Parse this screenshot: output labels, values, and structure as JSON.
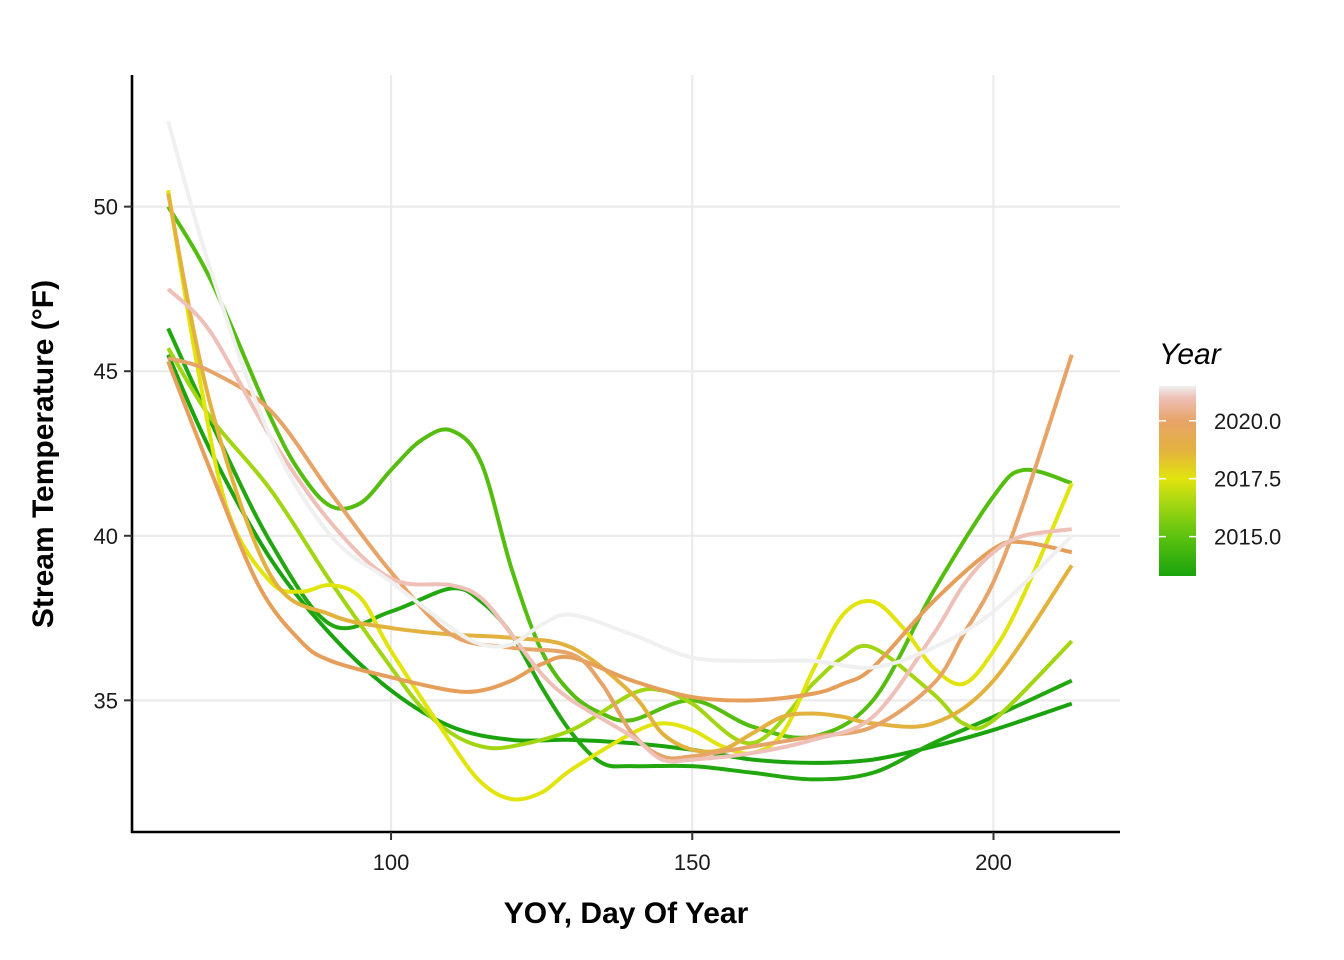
{
  "chart_data": {
    "type": "line",
    "title": "",
    "xlabel": "YOY, Day Of Year",
    "ylabel": "Stream Temperature (°F)",
    "xlim": [
      57,
      221
    ],
    "ylim": [
      31,
      54
    ],
    "x_ticks": [
      100,
      150,
      200
    ],
    "y_ticks": [
      35,
      40,
      45,
      50
    ],
    "x_tick_labels": [
      "100",
      "150",
      "200"
    ],
    "y_tick_labels": [
      "35",
      "40",
      "45",
      "50"
    ],
    "grid": true,
    "legend": {
      "title": "Year",
      "position": "right",
      "type": "colorbar",
      "range": [
        2013.3,
        2021.5
      ],
      "tick_values": [
        2015.0,
        2017.5,
        2020.0
      ],
      "tick_labels": [
        "2015.0",
        "2017.5",
        "2020.0"
      ],
      "gradient": [
        {
          "value": 2013.3,
          "color": "#1aa30d"
        },
        {
          "value": 2015.0,
          "color": "#5cc20f"
        },
        {
          "value": 2016.5,
          "color": "#a8d812"
        },
        {
          "value": 2017.5,
          "color": "#e2e40e"
        },
        {
          "value": 2018.7,
          "color": "#e3b23e"
        },
        {
          "value": 2020.0,
          "color": "#e7a468"
        },
        {
          "value": 2021.0,
          "color": "#eec0b8"
        },
        {
          "value": 2021.5,
          "color": "#f0f0f0"
        }
      ]
    },
    "series": [
      {
        "color": "#1aa30d",
        "points": [
          [
            63,
            45.5
          ],
          [
            70,
            42.6
          ],
          [
            80,
            39.3
          ],
          [
            90,
            37.0
          ],
          [
            100,
            35.3
          ],
          [
            110,
            34.2
          ],
          [
            120,
            33.8
          ],
          [
            130,
            33.8
          ],
          [
            140,
            33.7
          ],
          [
            150,
            33.5
          ],
          [
            160,
            33.2
          ],
          [
            170,
            33.1
          ],
          [
            180,
            33.2
          ],
          [
            190,
            33.6
          ],
          [
            200,
            34.1
          ],
          [
            213,
            34.9
          ]
        ]
      },
      {
        "color": "#22a80e",
        "points": [
          [
            63,
            46.3
          ],
          [
            70,
            43.5
          ],
          [
            80,
            39.8
          ],
          [
            90,
            37.3
          ],
          [
            100,
            37.7
          ],
          [
            110,
            38.4
          ],
          [
            115,
            38.0
          ],
          [
            120,
            37.0
          ],
          [
            125,
            35.4
          ],
          [
            130,
            34.0
          ],
          [
            135,
            33.1
          ],
          [
            140,
            33.0
          ],
          [
            150,
            33.0
          ],
          [
            160,
            32.8
          ],
          [
            170,
            32.6
          ],
          [
            180,
            32.8
          ],
          [
            190,
            33.7
          ],
          [
            200,
            34.5
          ],
          [
            213,
            35.6
          ]
        ]
      },
      {
        "color": "#55bd10",
        "points": [
          [
            63,
            50.0
          ],
          [
            70,
            47.8
          ],
          [
            80,
            43.6
          ],
          [
            85,
            41.9
          ],
          [
            90,
            40.9
          ],
          [
            95,
            41.0
          ],
          [
            100,
            42.0
          ],
          [
            105,
            42.9
          ],
          [
            110,
            43.2
          ],
          [
            115,
            42.2
          ],
          [
            120,
            39.0
          ],
          [
            125,
            36.5
          ],
          [
            130,
            35.2
          ],
          [
            135,
            34.6
          ],
          [
            140,
            34.4
          ],
          [
            150,
            35.0
          ],
          [
            160,
            34.2
          ],
          [
            170,
            33.9
          ],
          [
            180,
            35.0
          ],
          [
            190,
            38.3
          ],
          [
            200,
            41.2
          ],
          [
            205,
            42.0
          ],
          [
            213,
            41.6
          ]
        ]
      },
      {
        "color": "#a2d512",
        "points": [
          [
            63,
            45.7
          ],
          [
            70,
            43.6
          ],
          [
            80,
            41.4
          ],
          [
            90,
            38.6
          ],
          [
            100,
            36.0
          ],
          [
            105,
            34.8
          ],
          [
            110,
            34.0
          ],
          [
            115,
            33.6
          ],
          [
            120,
            33.6
          ],
          [
            130,
            34.1
          ],
          [
            140,
            35.2
          ],
          [
            145,
            35.3
          ],
          [
            150,
            34.9
          ],
          [
            160,
            33.7
          ],
          [
            170,
            35.5
          ],
          [
            175,
            36.3
          ],
          [
            180,
            36.6
          ],
          [
            190,
            35.2
          ],
          [
            195,
            34.3
          ],
          [
            200,
            34.4
          ],
          [
            213,
            36.8
          ]
        ]
      },
      {
        "color": "#e2e40e",
        "points": [
          [
            63,
            50.5
          ],
          [
            68,
            45.0
          ],
          [
            73,
            40.7
          ],
          [
            80,
            38.6
          ],
          [
            85,
            38.3
          ],
          [
            90,
            38.5
          ],
          [
            95,
            38.1
          ],
          [
            100,
            36.5
          ],
          [
            110,
            33.7
          ],
          [
            115,
            32.5
          ],
          [
            120,
            32.0
          ],
          [
            125,
            32.2
          ],
          [
            130,
            32.9
          ],
          [
            140,
            34.0
          ],
          [
            145,
            34.3
          ],
          [
            150,
            34.1
          ],
          [
            155,
            33.6
          ],
          [
            160,
            33.4
          ],
          [
            165,
            34.0
          ],
          [
            170,
            35.9
          ],
          [
            175,
            37.6
          ],
          [
            180,
            38.0
          ],
          [
            185,
            37.2
          ],
          [
            190,
            36.0
          ],
          [
            195,
            35.5
          ],
          [
            200,
            36.5
          ],
          [
            205,
            38.2
          ],
          [
            213,
            41.6
          ]
        ]
      },
      {
        "color": "#e3b23e",
        "points": [
          [
            63,
            50.4
          ],
          [
            70,
            44.0
          ],
          [
            80,
            38.8
          ],
          [
            90,
            37.6
          ],
          [
            100,
            37.2
          ],
          [
            110,
            37.0
          ],
          [
            120,
            36.9
          ],
          [
            130,
            36.6
          ],
          [
            140,
            35.2
          ],
          [
            145,
            34.0
          ],
          [
            150,
            33.5
          ],
          [
            155,
            33.5
          ],
          [
            160,
            34.0
          ],
          [
            165,
            34.5
          ],
          [
            170,
            34.6
          ],
          [
            175,
            34.5
          ],
          [
            180,
            34.3
          ],
          [
            190,
            34.3
          ],
          [
            200,
            35.6
          ],
          [
            213,
            39.1
          ]
        ]
      },
      {
        "color": "#e69f5a",
        "points": [
          [
            63,
            45.3
          ],
          [
            70,
            42.0
          ],
          [
            78,
            38.5
          ],
          [
            85,
            36.8
          ],
          [
            90,
            36.2
          ],
          [
            100,
            35.7
          ],
          [
            110,
            35.3
          ],
          [
            115,
            35.3
          ],
          [
            120,
            35.6
          ],
          [
            125,
            36.1
          ],
          [
            130,
            36.3
          ],
          [
            140,
            35.6
          ],
          [
            150,
            35.1
          ],
          [
            160,
            35.0
          ],
          [
            170,
            35.2
          ],
          [
            175,
            35.5
          ],
          [
            180,
            36.0
          ],
          [
            190,
            38.0
          ],
          [
            200,
            39.6
          ],
          [
            205,
            39.8
          ],
          [
            213,
            39.5
          ]
        ]
      },
      {
        "color": "#e7a468",
        "points": [
          [
            63,
            45.4
          ],
          [
            70,
            45.0
          ],
          [
            80,
            43.8
          ],
          [
            90,
            41.3
          ],
          [
            100,
            38.9
          ],
          [
            110,
            37.0
          ],
          [
            120,
            36.6
          ],
          [
            130,
            36.4
          ],
          [
            135,
            35.5
          ],
          [
            140,
            34.0
          ],
          [
            145,
            33.3
          ],
          [
            150,
            33.3
          ],
          [
            160,
            33.6
          ],
          [
            170,
            33.9
          ],
          [
            180,
            34.2
          ],
          [
            190,
            35.5
          ],
          [
            195,
            37.0
          ],
          [
            200,
            38.6
          ],
          [
            205,
            41.0
          ],
          [
            213,
            45.5
          ]
        ]
      },
      {
        "color": "#eec0b8",
        "points": [
          [
            63,
            47.5
          ],
          [
            70,
            46.2
          ],
          [
            80,
            43.0
          ],
          [
            90,
            40.4
          ],
          [
            100,
            38.7
          ],
          [
            110,
            38.5
          ],
          [
            115,
            38.1
          ],
          [
            120,
            37.0
          ],
          [
            125,
            35.8
          ],
          [
            130,
            35.0
          ],
          [
            140,
            33.9
          ],
          [
            145,
            33.2
          ],
          [
            150,
            33.2
          ],
          [
            160,
            33.4
          ],
          [
            170,
            33.8
          ],
          [
            180,
            34.5
          ],
          [
            190,
            37.0
          ],
          [
            195,
            38.5
          ],
          [
            200,
            39.5
          ],
          [
            205,
            40.0
          ],
          [
            213,
            40.2
          ]
        ]
      },
      {
        "color": "#f0f0f0",
        "points": [
          [
            63,
            52.6
          ],
          [
            70,
            48.1
          ],
          [
            80,
            43.0
          ],
          [
            90,
            40.0
          ],
          [
            100,
            38.6
          ],
          [
            110,
            37.2
          ],
          [
            115,
            36.7
          ],
          [
            120,
            36.7
          ],
          [
            125,
            37.3
          ],
          [
            130,
            37.6
          ],
          [
            140,
            37.0
          ],
          [
            150,
            36.3
          ],
          [
            160,
            36.2
          ],
          [
            170,
            36.2
          ],
          [
            180,
            36.0
          ],
          [
            190,
            36.6
          ],
          [
            200,
            37.7
          ],
          [
            213,
            40.0
          ]
        ]
      }
    ]
  }
}
